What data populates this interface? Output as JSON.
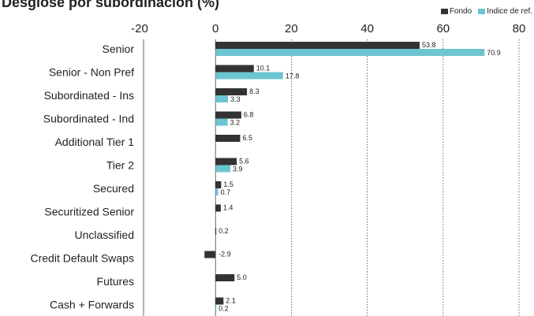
{
  "chart_data": {
    "type": "bar",
    "orientation": "horizontal",
    "title": "Desglose por subordinación (%)",
    "categories": [
      "Senior",
      "Senior - Non Pref",
      "Subordinated - Ins",
      "Subordinated - Ind",
      "Additional Tier 1",
      "Tier 2",
      "Secured",
      "Securitized Senior",
      "Unclassified",
      "Credit Default Swaps",
      "Futures",
      "Cash + Forwards"
    ],
    "series": [
      {
        "name": "Fondo",
        "color": "#333333",
        "values": [
          53.8,
          10.1,
          8.3,
          6.8,
          6.5,
          5.6,
          1.5,
          1.4,
          0.2,
          -2.9,
          5.0,
          2.1
        ],
        "labels": [
          "53.8",
          "10.1",
          "8.3",
          "6.8",
          "6.5",
          "5.6",
          "1.5",
          "1.4",
          "0.2",
          "-2.9",
          "5.0",
          "2.1"
        ]
      },
      {
        "name": "Indice de ref.",
        "color": "#6dc5d1",
        "values": [
          70.9,
          17.8,
          3.3,
          3.2,
          null,
          3.9,
          0.7,
          null,
          null,
          null,
          null,
          0.2
        ],
        "labels": [
          "70.9",
          "17.8",
          "3.3",
          "3.2",
          null,
          "3.9",
          "0.7",
          null,
          null,
          null,
          null,
          "0.2"
        ]
      }
    ],
    "xlim": [
      -20,
      80
    ],
    "xticks": [
      -20,
      0,
      20,
      40,
      60,
      80
    ],
    "xtick_labels": [
      "-20",
      "0",
      "20",
      "40",
      "60",
      "80"
    ],
    "grid": "vertical dotted",
    "legend_position": "top-right"
  }
}
